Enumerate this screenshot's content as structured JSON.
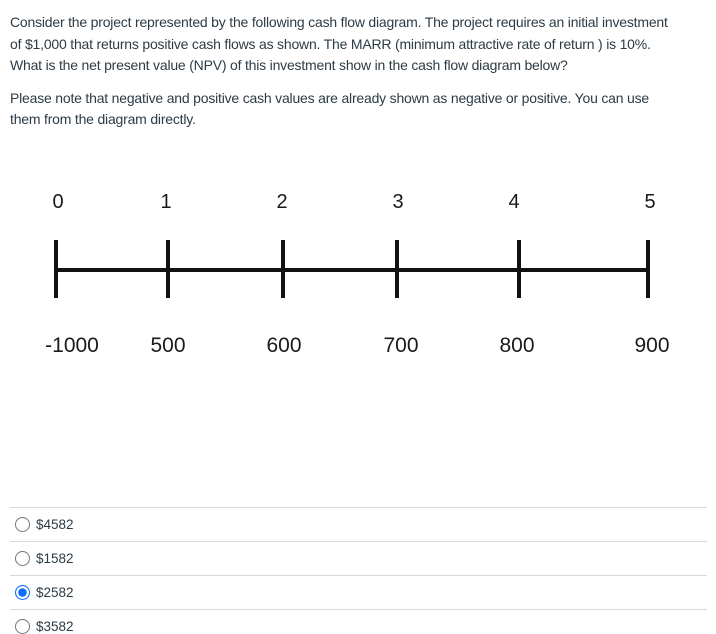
{
  "question": {
    "paragraph1_lines": [
      "Consider the project represented by the following cash flow diagram. The project requires an initial investment",
      "of $1,000 that returns positive cash flows as shown. The MARR (minimum attractive rate of return ) is 10%.",
      "What is the net present value (NPV) of this investment show in the cash flow diagram below?"
    ],
    "paragraph2_lines": [
      "Please note that negative and positive cash values are already shown as negative or positive. You can use",
      "them from the diagram directly."
    ]
  },
  "diagram": {
    "type": "cash-flow-timeline",
    "periods": [
      "0",
      "1",
      "2",
      "3",
      "4",
      "5"
    ],
    "values": [
      "-1000",
      "500",
      "600",
      "700",
      "800",
      "900"
    ],
    "initial_investment": -1000,
    "marr_percent": 10
  },
  "options": [
    {
      "label": "$4582",
      "selected": false
    },
    {
      "label": "$1582",
      "selected": false
    },
    {
      "label": "$2582",
      "selected": true
    },
    {
      "label": "$3582",
      "selected": false
    }
  ],
  "colors": {
    "accent_selected_radio": "#0d6efd",
    "body_text": "#2d3b45",
    "diagram_ink": "#111111",
    "divider": "#d8d8d8"
  }
}
